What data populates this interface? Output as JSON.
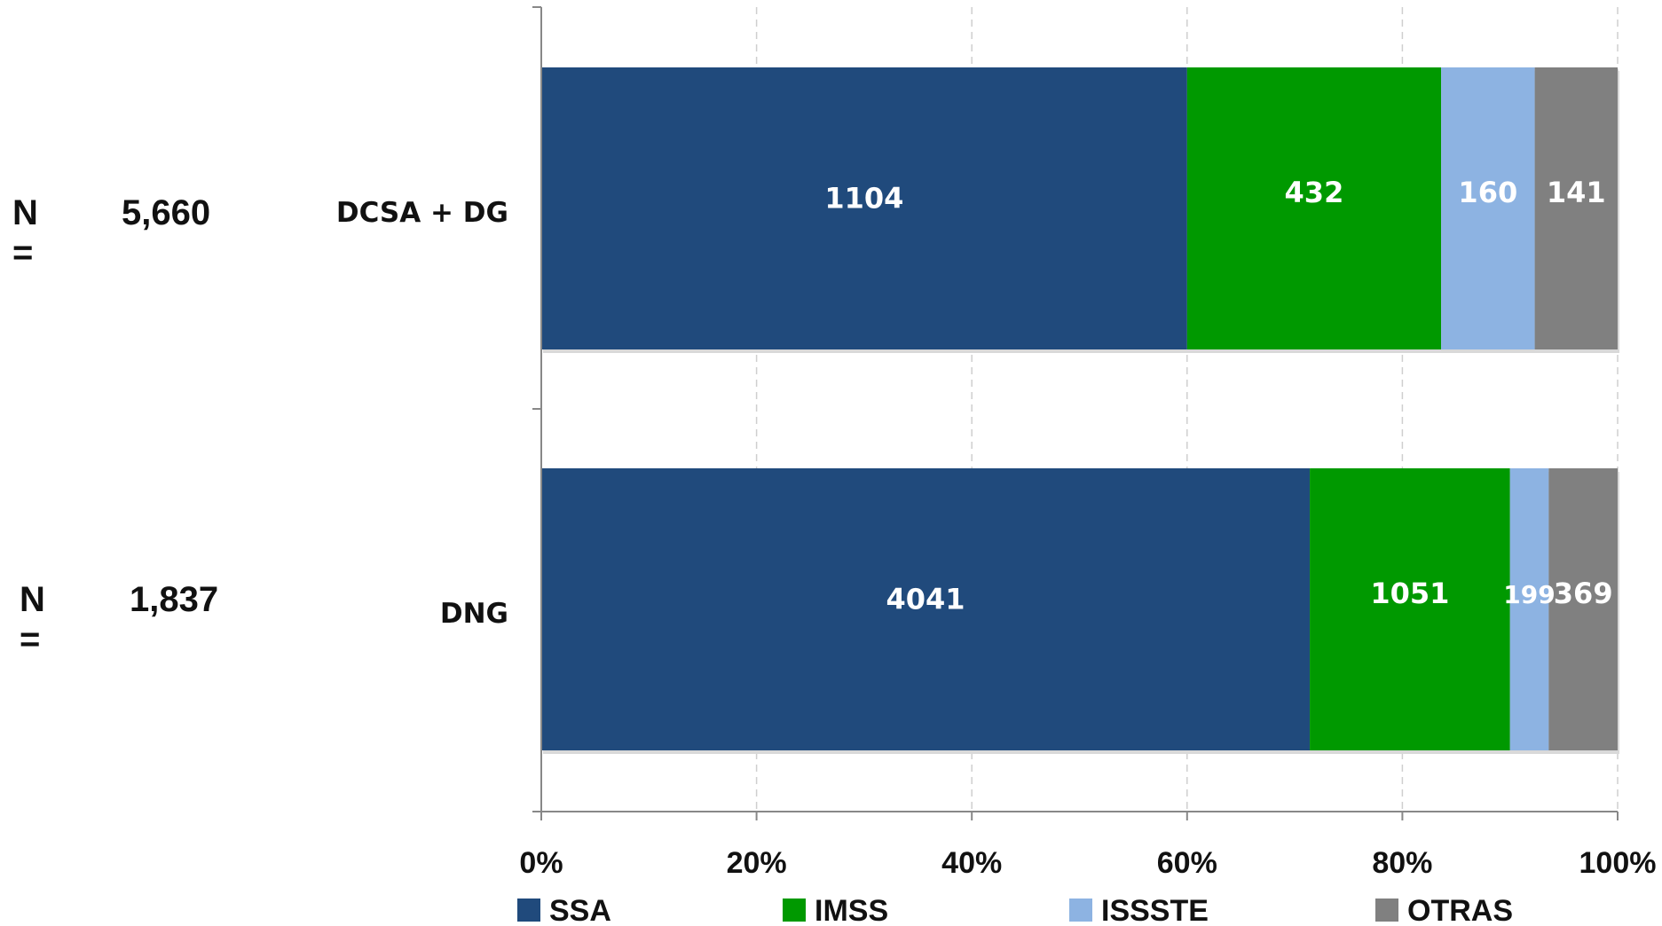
{
  "n_labels": [
    {
      "prefix": "N =",
      "value": "5,660"
    },
    {
      "prefix": "N =",
      "value": "1,837"
    }
  ],
  "chart_data": {
    "type": "bar",
    "orientation": "horizontal",
    "stacking": "percent",
    "categories": [
      "DCSA + DG",
      "DNG"
    ],
    "series": [
      {
        "name": "SSA",
        "color": "#204a7c",
        "values": [
          1104,
          4041
        ],
        "labels": [
          "1104",
          "4041"
        ]
      },
      {
        "name": "IMSS",
        "color": "#009900",
        "values": [
          432,
          1051
        ],
        "labels": [
          "432",
          "1051"
        ]
      },
      {
        "name": "ISSSTE",
        "color": "#8db3e2",
        "values": [
          160,
          199
        ],
        "labels": [
          "160",
          "199"
        ]
      },
      {
        "name": "OTRAS",
        "color": "#808080",
        "values": [
          141,
          369
        ],
        "labels": [
          "141",
          "369"
        ]
      }
    ],
    "percent_ends": [
      [
        60,
        83.6,
        92.3,
        100
      ],
      [
        71.4,
        90,
        93.6,
        100
      ]
    ],
    "xticks": [
      "0%",
      "20%",
      "40%",
      "60%",
      "80%",
      "100%"
    ],
    "xlim": [
      0,
      100
    ],
    "grid": "vertical dashed",
    "legend": "bottom"
  }
}
